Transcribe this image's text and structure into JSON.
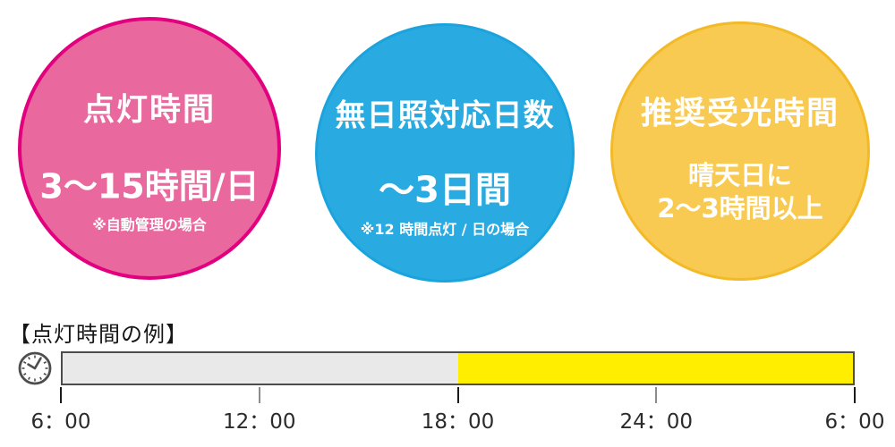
{
  "circles": {
    "lighting": {
      "title": "点灯時間",
      "main": "3〜15時間/日",
      "note": "※自動管理の場合",
      "fill": "#e9689e",
      "border": "#e3007f"
    },
    "no_sun": {
      "title": "無日照対応日数",
      "main": "〜3日間",
      "note": "※12 時間点灯 / 日の場合",
      "fill": "#29abe2",
      "border": "#1aa3dc"
    },
    "recommended_light": {
      "title": "推奨受光時間",
      "main_line1": "晴天日に",
      "main_line2": "2〜3時間以上",
      "fill": "#f8ca52",
      "border": "#f3ba27"
    }
  },
  "timeline": {
    "heading": "【点灯時間の例】",
    "bar": {
      "segments": [
        {
          "state": "off",
          "from": "6：00",
          "to": "18：00",
          "color": "#e9e9e9",
          "width_pct": 50
        },
        {
          "state": "on",
          "from": "18：00",
          "to": "6：00",
          "color": "#ffee00",
          "width_pct": 50
        }
      ]
    },
    "ticks": [
      {
        "label": "6：00",
        "color": "#1a1a1a"
      },
      {
        "label": "12：00",
        "color": "#8c8c8c"
      },
      {
        "label": "18：00",
        "color": "#1a1a1a"
      },
      {
        "label": "24：00",
        "color": "#8c8c8c"
      },
      {
        "label": "6：00",
        "color": "#1a1a1a"
      }
    ]
  },
  "icons": {
    "clock": "analog-clock"
  }
}
